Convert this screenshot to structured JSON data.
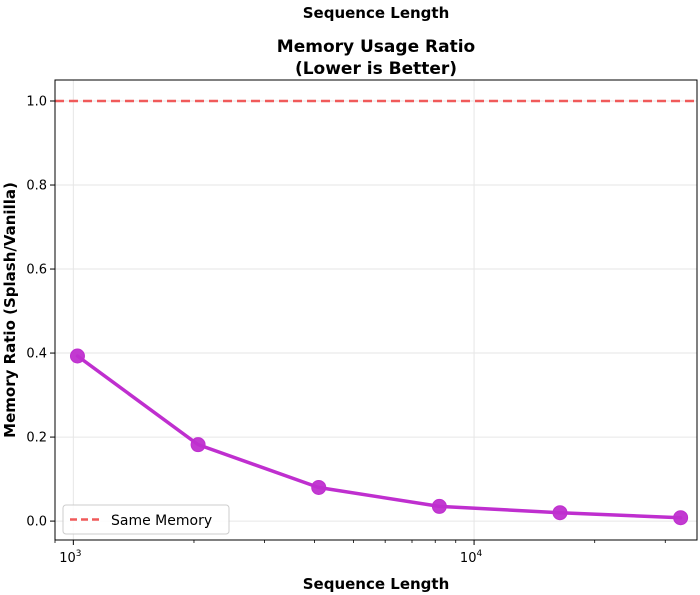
{
  "header": {
    "top_label": "Sequence Length"
  },
  "chart_data": {
    "type": "line",
    "title_line1": "Memory Usage Ratio",
    "title_line2": "(Lower is Better)",
    "xlabel": "Sequence Length",
    "ylabel": "Memory Ratio (Splash/Vanilla)",
    "xscale": "log",
    "xlim": [
      900,
      36000
    ],
    "ylim": [
      -0.045,
      1.05
    ],
    "grid": true,
    "legend_position": "lower-left",
    "x_ticks": [
      {
        "value": 1000,
        "label": "10",
        "exp": "3"
      },
      {
        "value": 10000,
        "label": "10",
        "exp": "4"
      }
    ],
    "y_ticks": [
      {
        "value": 0.0,
        "label": "0.0"
      },
      {
        "value": 0.2,
        "label": "0.2"
      },
      {
        "value": 0.4,
        "label": "0.4"
      },
      {
        "value": 0.6,
        "label": "0.6"
      },
      {
        "value": 0.8,
        "label": "0.8"
      },
      {
        "value": 1.0,
        "label": "1.0"
      }
    ],
    "series": [
      {
        "color": "#bf2fcf",
        "x": [
          1024,
          2048,
          4096,
          8192,
          16384,
          32768
        ],
        "values": [
          0.393,
          0.182,
          0.08,
          0.035,
          0.02,
          0.008
        ]
      }
    ],
    "reference_line": {
      "name": "Same Memory",
      "y": 1.0,
      "color": "#f05a5a",
      "style": "dashed"
    }
  }
}
